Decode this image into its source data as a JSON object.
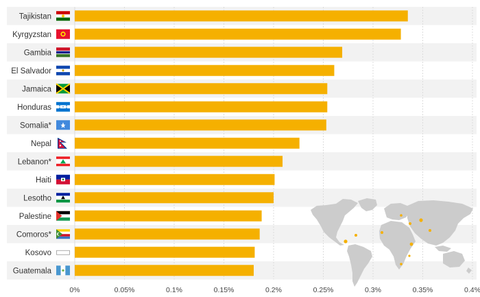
{
  "chart_data": {
    "type": "bar",
    "orientation": "horizontal",
    "title": "",
    "xlabel": "",
    "ylabel": "",
    "xlim": [
      0,
      0.4
    ],
    "x_ticks": [
      "0%",
      "0.05%",
      "0.1%",
      "0.15%",
      "0.2%",
      "0.25%",
      "0.3%",
      "0.35%",
      "0.4%"
    ],
    "grid": true,
    "bar_color": "#f5b000",
    "row_band_color": "#f2f2f2",
    "gridline_color": "#dcdcdc",
    "map_colors": {
      "land": "#cccccc",
      "highlight": "#f5b000"
    },
    "categories": [
      "Tajikistan",
      "Kyrgyzstan",
      "Gambia",
      "El Salvador",
      "Jamaica",
      "Honduras",
      "Somalia*",
      "Nepal",
      "Lebanon*",
      "Haiti",
      "Lesotho",
      "Palestine",
      "Comoros*",
      "Kosovo",
      "Guatemala"
    ],
    "values": [
      0.335,
      0.328,
      0.269,
      0.261,
      0.254,
      0.254,
      0.253,
      0.226,
      0.209,
      0.201,
      0.2,
      0.188,
      0.186,
      0.181,
      0.18
    ],
    "flags": [
      "flag-tajikistan-icon",
      "flag-kyrgyzstan-icon",
      "flag-gambia-icon",
      "flag-el-salvador-icon",
      "flag-jamaica-icon",
      "flag-honduras-icon",
      "flag-somalia-icon",
      "flag-nepal-icon",
      "flag-lebanon-icon",
      "flag-haiti-icon",
      "flag-lesotho-icon",
      "flag-palestine-icon",
      "flag-comoros-icon",
      "flag-kosovo-icon",
      "flag-guatemala-icon"
    ]
  }
}
